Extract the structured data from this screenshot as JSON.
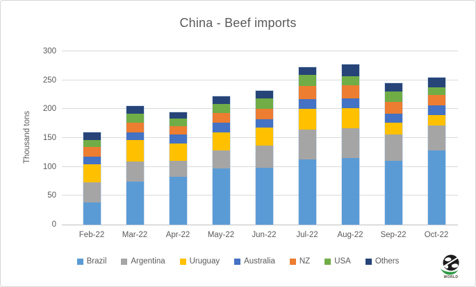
{
  "window": {
    "background": "#ffffff",
    "border_color": "#d6d6d6",
    "text_color": "#595959",
    "gridline_color": "#d9d9d9",
    "axisline_color": "#bfbfbf"
  },
  "chart_data": {
    "type": "bar",
    "stacked": true,
    "title": "China - Beef imports",
    "xlabel": "",
    "ylabel": "Thousand tons",
    "ylim": [
      0,
      300
    ],
    "yticks": [
      0,
      50,
      100,
      150,
      200,
      250,
      300
    ],
    "grid": true,
    "legend_position": "bottom",
    "categories": [
      "Feb-22",
      "Mar-22",
      "Apr-22",
      "May-22",
      "Jun-22",
      "Jul-22",
      "Aug-22",
      "Sep-22",
      "Oct-22"
    ],
    "series": [
      {
        "name": "Brazil",
        "color": "#5B9BD5",
        "values": [
          38,
          74,
          83,
          97,
          98,
          113,
          115,
          111,
          129
        ]
      },
      {
        "name": "Argentina",
        "color": "#A5A5A5",
        "values": [
          35,
          35,
          28,
          32,
          39,
          51,
          52,
          45,
          43
        ]
      },
      {
        "name": "Uruguay",
        "color": "#FFC000",
        "values": [
          31,
          37,
          29,
          31,
          31,
          36,
          35,
          21,
          18
        ]
      },
      {
        "name": "Australia",
        "color": "#4472C4",
        "values": [
          14,
          14,
          16,
          17,
          14,
          17,
          16,
          15,
          16
        ]
      },
      {
        "name": "NZ",
        "color": "#ED7D31",
        "values": [
          17,
          17,
          15,
          16,
          18,
          23,
          23,
          20,
          19
        ]
      },
      {
        "name": "USA",
        "color": "#70AD47",
        "values": [
          12,
          15,
          13,
          16,
          18,
          19,
          16,
          19,
          13
        ]
      },
      {
        "name": "Others",
        "color": "#264478",
        "values": [
          13,
          13,
          11,
          13,
          14,
          14,
          20,
          14,
          16
        ]
      }
    ]
  },
  "logo": {
    "text": "WORLD",
    "globe_color": "#1c1c1c",
    "swoosh_color": "#2e9b43"
  }
}
